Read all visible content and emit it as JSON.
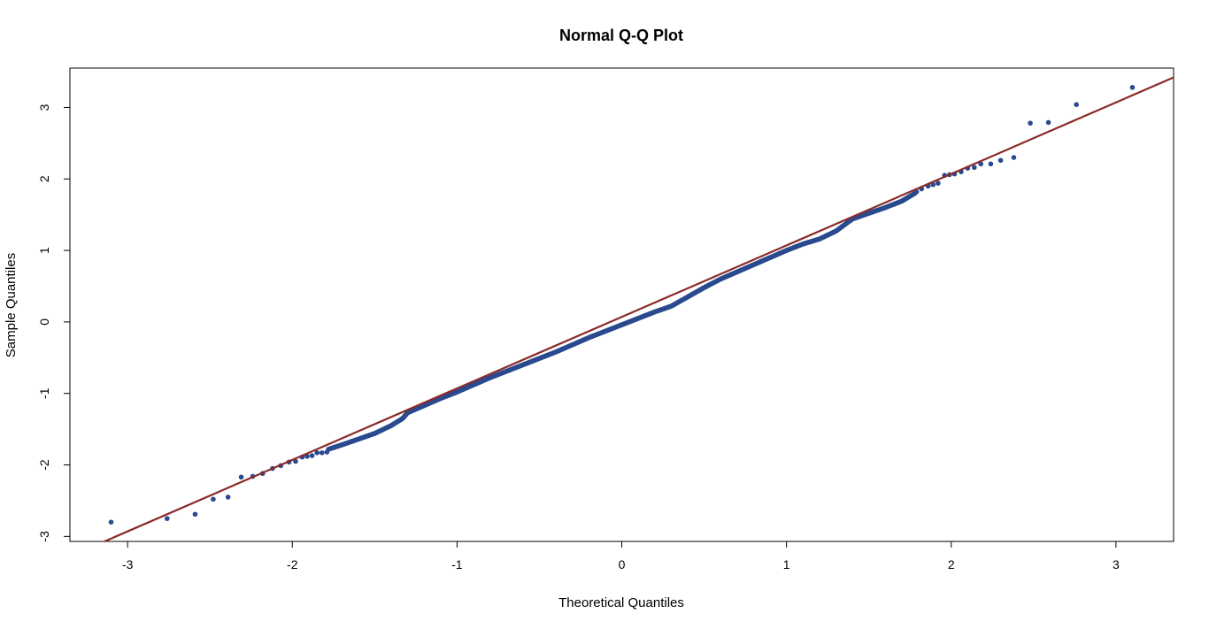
{
  "chart_data": {
    "type": "scatter",
    "title": "Normal Q-Q Plot",
    "xlabel": "Theoretical Quantiles",
    "ylabel": "Sample Quantiles",
    "xlim": [
      -3.35,
      3.35
    ],
    "ylim": [
      -3.07,
      3.55
    ],
    "x_ticks": [
      -3,
      -2,
      -1,
      0,
      1,
      2,
      3
    ],
    "y_ticks": [
      -3,
      -2,
      -1,
      0,
      1,
      2,
      3
    ],
    "x_tick_labels": [
      "-3",
      "-2",
      "-1",
      "0",
      "1",
      "2",
      "3"
    ],
    "y_tick_labels": [
      "-3",
      "-2",
      "-1",
      "0",
      "1",
      "2",
      "3"
    ],
    "grid": false,
    "point_color": "#2a4a8f",
    "line_color": "#8b2a2a",
    "reference_line": {
      "intercept": 0.07,
      "slope": 1.0
    },
    "tail_points": [
      [
        -3.1,
        -2.8
      ],
      [
        -2.76,
        -2.75
      ],
      [
        -2.59,
        -2.69
      ],
      [
        -2.48,
        -2.48
      ],
      [
        -2.39,
        -2.45
      ],
      [
        -2.31,
        -2.17
      ],
      [
        -2.24,
        -2.16
      ],
      [
        -2.18,
        -2.12
      ],
      [
        -2.12,
        -2.05
      ],
      [
        -2.07,
        -2.01
      ],
      [
        -2.02,
        -1.96
      ],
      [
        -1.98,
        -1.95
      ],
      [
        -1.94,
        -1.89
      ],
      [
        -1.91,
        -1.88
      ],
      [
        -1.88,
        -1.87
      ],
      [
        -1.85,
        -1.83
      ],
      [
        -1.82,
        -1.83
      ],
      [
        -1.79,
        -1.82
      ],
      [
        1.79,
        1.82
      ],
      [
        1.82,
        1.86
      ],
      [
        1.86,
        1.9
      ],
      [
        1.89,
        1.92
      ],
      [
        1.92,
        1.94
      ],
      [
        1.96,
        2.05
      ],
      [
        1.99,
        2.06
      ],
      [
        2.02,
        2.07
      ],
      [
        2.06,
        2.1
      ],
      [
        2.1,
        2.15
      ],
      [
        2.14,
        2.16
      ],
      [
        2.18,
        2.21
      ],
      [
        2.24,
        2.21
      ],
      [
        2.3,
        2.26
      ],
      [
        2.38,
        2.3
      ],
      [
        2.48,
        2.78
      ],
      [
        2.59,
        2.79
      ],
      [
        2.76,
        3.04
      ],
      [
        3.1,
        3.28
      ]
    ],
    "body_knots": [
      [
        -1.78,
        -1.78
      ],
      [
        -1.7,
        -1.72
      ],
      [
        -1.6,
        -1.64
      ],
      [
        -1.5,
        -1.56
      ],
      [
        -1.4,
        -1.45
      ],
      [
        -1.33,
        -1.35
      ],
      [
        -1.3,
        -1.27
      ],
      [
        -1.2,
        -1.17
      ],
      [
        -1.1,
        -1.07
      ],
      [
        -1.0,
        -0.98
      ],
      [
        -0.9,
        -0.88
      ],
      [
        -0.8,
        -0.78
      ],
      [
        -0.7,
        -0.69
      ],
      [
        -0.6,
        -0.6
      ],
      [
        -0.5,
        -0.51
      ],
      [
        -0.4,
        -0.42
      ],
      [
        -0.3,
        -0.32
      ],
      [
        -0.2,
        -0.22
      ],
      [
        -0.1,
        -0.13
      ],
      [
        0.0,
        -0.04
      ],
      [
        0.1,
        0.05
      ],
      [
        0.2,
        0.14
      ],
      [
        0.3,
        0.22
      ],
      [
        0.4,
        0.35
      ],
      [
        0.5,
        0.48
      ],
      [
        0.6,
        0.6
      ],
      [
        0.7,
        0.7
      ],
      [
        0.8,
        0.8
      ],
      [
        0.9,
        0.9
      ],
      [
        1.0,
        1.0
      ],
      [
        1.1,
        1.09
      ],
      [
        1.2,
        1.16
      ],
      [
        1.3,
        1.27
      ],
      [
        1.4,
        1.44
      ],
      [
        1.5,
        1.52
      ],
      [
        1.6,
        1.6
      ],
      [
        1.7,
        1.69
      ],
      [
        1.78,
        1.8
      ]
    ]
  }
}
